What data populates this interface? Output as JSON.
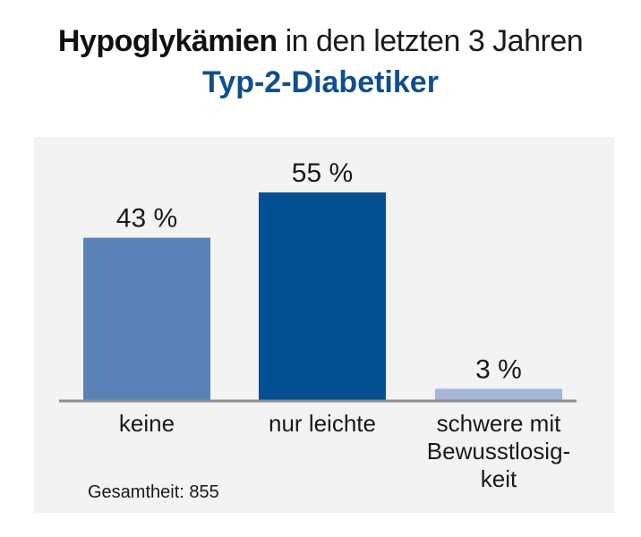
{
  "header": {
    "title_bold": "Hypoglykämien",
    "title_rest": " in den letzten 3 Jahren",
    "subtitle": "Typ-2-Diabetiker"
  },
  "footnote": "Gesamtheit: 855",
  "colors": {
    "keine": "#5a82b7",
    "nur_leichte": "#054f93",
    "schwere": "#a4b7d9",
    "baseline": "#8c8c8c",
    "panel": "#f3f3f3"
  },
  "chart_data": {
    "type": "bar",
    "title": "Hypoglykämien in den letzten 3 Jahren",
    "subtitle": "Typ-2-Diabetiker",
    "categories": [
      "keine",
      "nur leichte",
      "schwere mit Bewusstlosigkeit"
    ],
    "category_labels": [
      [
        "keine"
      ],
      [
        "nur leichte"
      ],
      [
        "schwere mit",
        "Bewusstlosig-",
        "keit"
      ]
    ],
    "values": [
      43,
      55,
      3
    ],
    "value_labels": [
      "43 %",
      "55 %",
      "3 %"
    ],
    "unit": "%",
    "ylim": [
      0,
      60
    ],
    "grid": false
  }
}
